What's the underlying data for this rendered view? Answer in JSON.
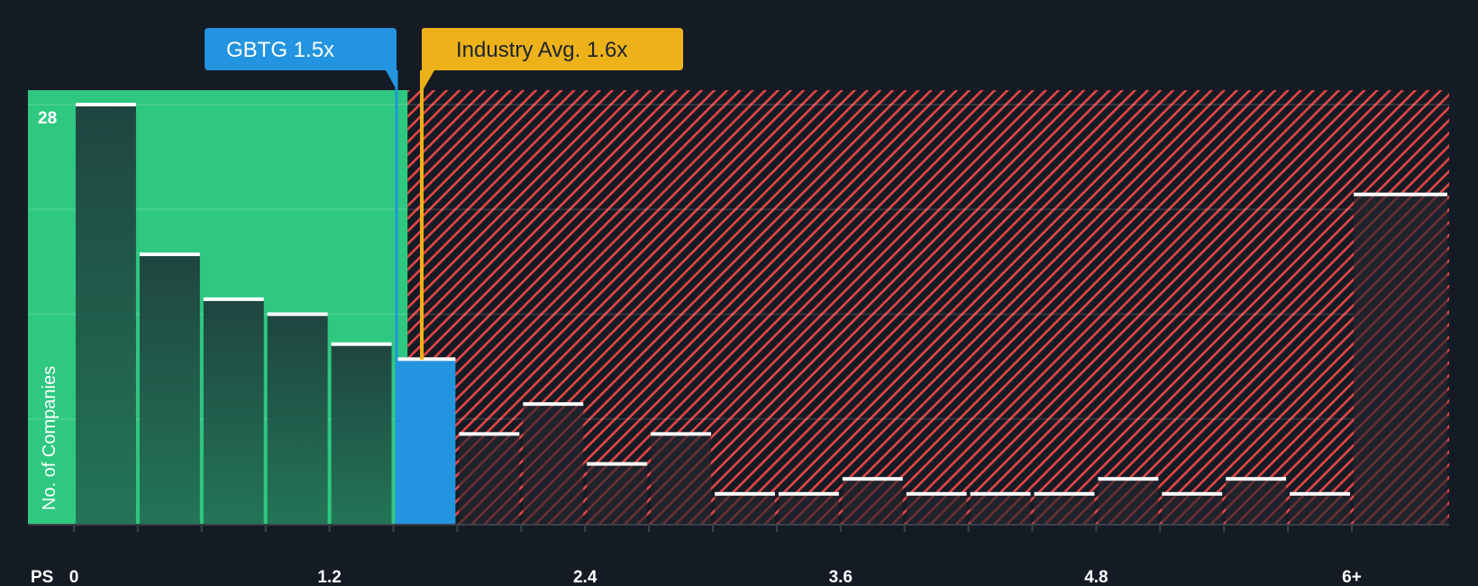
{
  "chart_data": {
    "type": "bar",
    "title": "",
    "xlabel": "PS",
    "ylabel": "No. of Companies",
    "ylim": [
      0,
      28
    ],
    "y_tick_labels": [
      "28"
    ],
    "x_tick_labels": [
      "0",
      "1.2",
      "2.4",
      "3.6",
      "4.8",
      "6+"
    ],
    "x_tick_positions": [
      0,
      1.2,
      2.4,
      3.6,
      4.8,
      6.0
    ],
    "bin_width": 0.3,
    "bins": [
      0,
      0.3,
      0.6,
      0.9,
      1.2,
      1.5,
      1.8,
      2.1,
      2.4,
      2.7,
      3.0,
      3.3,
      3.6,
      3.9,
      4.2,
      4.5,
      4.8,
      5.1,
      5.4,
      5.7,
      6.0
    ],
    "values": [
      28,
      18,
      15,
      14,
      12,
      11,
      6,
      8,
      4,
      6,
      2,
      2,
      3,
      2,
      2,
      2,
      3,
      2,
      3,
      2,
      22
    ],
    "highlight_bin_index": 5,
    "grid": true,
    "gridlines": [
      7,
      14,
      21,
      28
    ],
    "markers": [
      {
        "label": "GBTG 1.5x",
        "value": 1.5,
        "color": "#2394df"
      },
      {
        "label": "Industry Avg. 1.6x",
        "value": 1.6,
        "color": "#edb11a"
      }
    ],
    "regions": [
      {
        "name": "undervalued",
        "from": 0,
        "to": 1.55,
        "color": "#2ec880"
      },
      {
        "name": "overvalued",
        "from": 1.55,
        "to": 6.3,
        "color": "#e64646",
        "pattern": "diagonal-hatch"
      }
    ]
  },
  "labels": {
    "company_callout": "GBTG 1.5x",
    "industry_callout": "Industry Avg. 1.6x",
    "y_axis_title": "No. of Companies",
    "x_axis_title": "PS",
    "y_max_label": "28"
  },
  "colors": {
    "background": "#151b24",
    "green": "#2ec880",
    "green_bar": "#214a3f",
    "blue": "#2394df",
    "gold": "#edb11a",
    "red": "#e64646",
    "dark_bar": "#1e222b",
    "bar_cap": "#ffffff"
  }
}
